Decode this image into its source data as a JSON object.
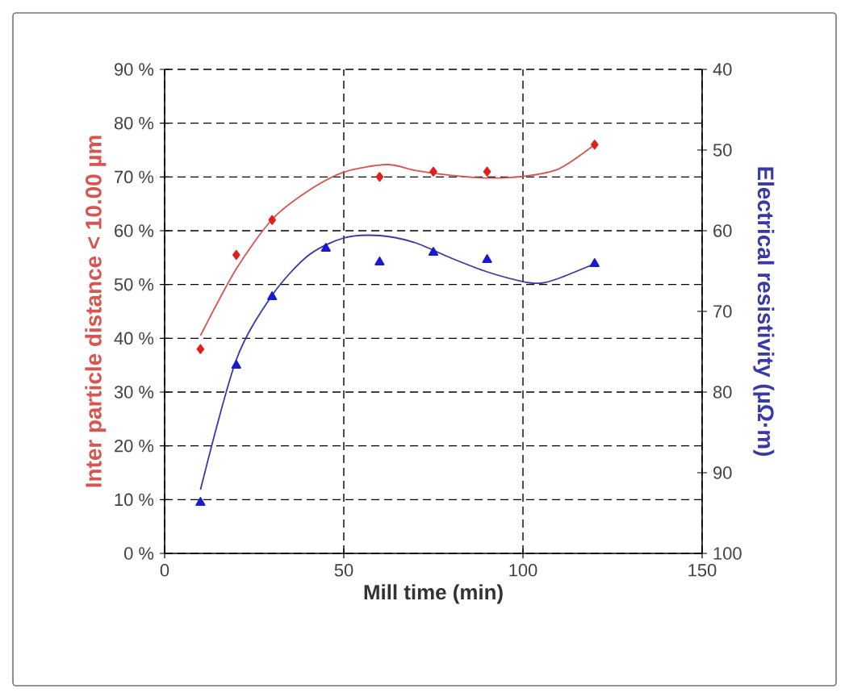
{
  "chart_data": {
    "type": "scatter",
    "xlabel": "Mill time (min)",
    "ylabel": "Inter particle distance < 10.00 µm",
    "y2label": "Electrical resistivity (µΩ·m)",
    "xlim": [
      0,
      150
    ],
    "xticks": [
      0,
      50,
      100,
      150
    ],
    "ylim": [
      0,
      90
    ],
    "yticks": [
      {
        "value": 0,
        "label": "0 %"
      },
      {
        "value": 10,
        "label": "10 %"
      },
      {
        "value": 20,
        "label": "20 %"
      },
      {
        "value": 30,
        "label": "30 %"
      },
      {
        "value": 40,
        "label": "40 %"
      },
      {
        "value": 50,
        "label": "50 %"
      },
      {
        "value": 60,
        "label": "60 %"
      },
      {
        "value": 70,
        "label": "70 %"
      },
      {
        "value": 80,
        "label": "80 %"
      },
      {
        "value": 90,
        "label": "90 %"
      }
    ],
    "y2lim": [
      100,
      40
    ],
    "y2ticks": [
      40,
      50,
      60,
      70,
      80,
      90,
      100
    ],
    "grid": true,
    "series": [
      {
        "type": "line",
        "color": "#d9534f",
        "marker": "none",
        "line_style": "solid",
        "x": [
          10,
          20,
          30,
          40,
          50,
          62,
          70,
          80,
          90,
          100,
          110,
          120
        ],
        "values": [
          40.5,
          52.9,
          62.1,
          67.4,
          70.9,
          72.3,
          71.2,
          70.3,
          69.8,
          70.1,
          71.5,
          76
        ]
      },
      {
        "type": "line",
        "color": "#3838a8",
        "axis": "y2",
        "marker": "none",
        "line_style": "solid",
        "x": [
          10,
          20,
          30,
          40,
          50,
          60,
          70,
          80,
          90,
          100,
          105,
          110,
          120
        ],
        "values": [
          92.1,
          76,
          68,
          63.1,
          60.9,
          60.6,
          61.5,
          63.4,
          65.1,
          66.3,
          66.5,
          65.9,
          64.1
        ]
      },
      {
        "color": "#e0201b",
        "marker": "diamond",
        "x": [
          10,
          20,
          30,
          60,
          75,
          90,
          120
        ],
        "values": [
          38,
          55.5,
          62,
          70,
          71,
          71,
          76
        ]
      },
      {
        "color": "#1a1ad0",
        "axis": "y2",
        "marker": "triangle",
        "x": [
          10,
          20,
          30,
          45,
          60,
          75,
          90,
          120
        ],
        "values": [
          93.7,
          76.7,
          68.2,
          62.2,
          63.9,
          62.7,
          63.6,
          64.1
        ]
      }
    ]
  }
}
